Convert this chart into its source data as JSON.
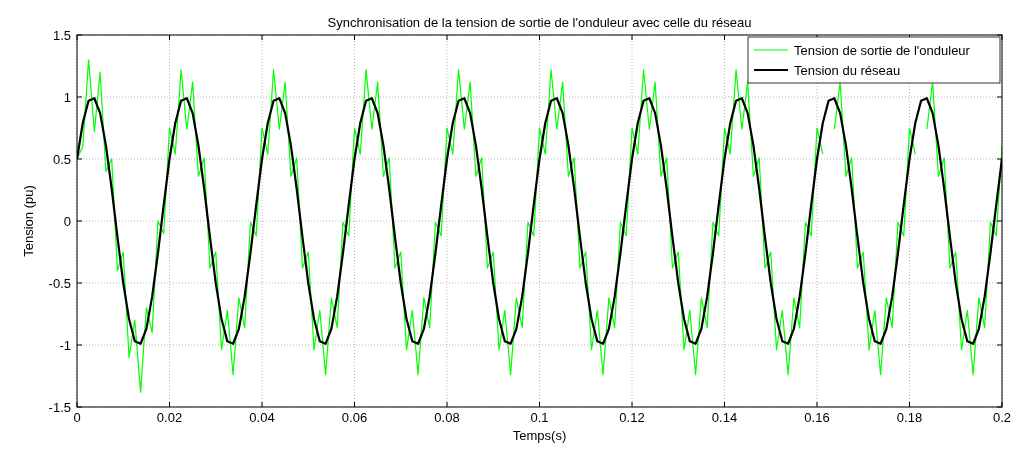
{
  "chart_data": {
    "type": "line",
    "title": "Synchronisation de la tension de sortie de l'onduleur avec celle du réseau",
    "xlabel": "Temps(s)",
    "ylabel": "Tension (pu)",
    "x": [
      0,
      0.00125,
      0.0025,
      0.00375,
      0.005,
      0.00625,
      0.0075,
      0.00875,
      0.01,
      0.01125,
      0.0125,
      0.01375,
      0.015,
      0.01625,
      0.0175,
      0.01875,
      0.02,
      0.02125,
      0.0225,
      0.02375,
      0.025,
      0.02625,
      0.0275,
      0.02875,
      0.03,
      0.03125,
      0.0325,
      0.03375,
      0.035,
      0.03625,
      0.0375,
      0.03875,
      0.04,
      0.04125,
      0.0425,
      0.04375,
      0.045,
      0.04625,
      0.0475,
      0.04875,
      0.05,
      0.05125,
      0.0525,
      0.05375,
      0.055,
      0.05625,
      0.0575,
      0.05875,
      0.06,
      0.06125,
      0.0625,
      0.06375,
      0.065,
      0.06625,
      0.0675,
      0.06875,
      0.07,
      0.07125,
      0.0725,
      0.07375,
      0.075,
      0.07625,
      0.0775,
      0.07875,
      0.08,
      0.08125,
      0.0825,
      0.08375,
      0.085,
      0.08625,
      0.0875,
      0.08875,
      0.09,
      0.09125,
      0.0925,
      0.09375,
      0.095,
      0.09625,
      0.0975,
      0.09875,
      0.1,
      0.10125,
      0.1025,
      0.10375,
      0.105,
      0.10625,
      0.1075,
      0.10875,
      0.11,
      0.11125,
      0.1125,
      0.11375,
      0.115,
      0.11625,
      0.1175,
      0.11875,
      0.12,
      0.12125,
      0.1225,
      0.12375,
      0.125,
      0.12625,
      0.1275,
      0.12875,
      0.13,
      0.13125,
      0.1325,
      0.13375,
      0.135,
      0.13625,
      0.1375,
      0.13875,
      0.14,
      0.14125,
      0.1425,
      0.14375,
      0.145,
      0.14625,
      0.1475,
      0.14875,
      0.15,
      0.15125,
      0.1525,
      0.15375,
      0.155,
      0.15625,
      0.1575,
      0.15875,
      0.16,
      0.16125,
      0.1625,
      0.16375,
      0.165,
      0.16625,
      0.1675,
      0.16875,
      0.17,
      0.17125,
      0.1725,
      0.17375,
      0.175,
      0.17625,
      0.1775,
      0.17875,
      0.18,
      0.18125,
      0.1825,
      0.18375,
      0.185,
      0.18625,
      0.1875,
      0.18875,
      0.19,
      0.19125,
      0.1925,
      0.19375,
      0.195,
      0.19625,
      0.1975,
      0.19875,
      0.2
    ],
    "series": [
      {
        "name": "Tension de sortie de l'onduleur",
        "color": "#00ff00",
        "values": [
          0.5,
          0.6,
          1.3,
          0.72,
          1.2,
          0.4,
          0.5,
          -0.4,
          -0.25,
          -1.1,
          -0.8,
          -1.38,
          -0.7,
          -0.9,
          0,
          -0.1,
          0.75,
          0.54,
          1.22,
          0.74,
          1.12,
          0.36,
          0.51,
          -0.38,
          -0.25,
          -1.04,
          -0.72,
          -1.24,
          -0.62,
          -0.86,
          -0.01,
          -0.12,
          0.75,
          0.54,
          1.22,
          0.74,
          1.12,
          0.36,
          0.51,
          -0.38,
          -0.25,
          -1.04,
          -0.72,
          -1.24,
          -0.62,
          -0.86,
          -0.01,
          -0.12,
          0.75,
          0.54,
          1.22,
          0.74,
          1.12,
          0.36,
          0.51,
          -0.38,
          -0.25,
          -1.04,
          -0.72,
          -1.24,
          -0.62,
          -0.86,
          -0.01,
          -0.12,
          0.75,
          0.54,
          1.22,
          0.74,
          1.12,
          0.36,
          0.51,
          -0.38,
          -0.25,
          -1.04,
          -0.72,
          -1.24,
          -0.62,
          -0.86,
          -0.01,
          -0.12,
          0.75,
          0.54,
          1.22,
          0.74,
          1.12,
          0.36,
          0.51,
          -0.38,
          -0.25,
          -1.04,
          -0.72,
          -1.24,
          -0.62,
          -0.86,
          -0.01,
          -0.12,
          0.75,
          0.54,
          1.22,
          0.74,
          1.12,
          0.36,
          0.51,
          -0.38,
          -0.25,
          -1.04,
          -0.72,
          -1.24,
          -0.62,
          -0.86,
          -0.01,
          -0.12,
          0.75,
          0.54,
          1.22,
          0.74,
          1.12,
          0.36,
          0.51,
          -0.38,
          -0.25,
          -1.04,
          -0.72,
          -1.24,
          -0.62,
          -0.86,
          -0.01,
          -0.12,
          0.75,
          0.54,
          null,
          0.74,
          1.12,
          0.36,
          0.51,
          -0.38,
          -0.25,
          -1.04,
          -0.72,
          -1.24,
          -0.62,
          -0.86,
          -0.01,
          -0.12,
          0.75,
          0.54,
          null,
          0.74,
          1.12,
          0.36,
          0.51,
          -0.38,
          -0.25,
          -1.04,
          -0.72,
          -1.24,
          -0.62,
          -0.86,
          -0.01,
          -0.12,
          0.6
        ]
      },
      {
        "name": "Tension du réseau",
        "color": "#000000",
        "values": [
          0.5,
          0.79,
          0.97,
          0.99,
          0.87,
          0.61,
          0.26,
          -0.13,
          -0.5,
          -0.79,
          -0.97,
          -0.99,
          -0.87,
          -0.61,
          -0.26,
          0.13,
          0.5,
          0.79,
          0.97,
          0.99,
          0.87,
          0.61,
          0.26,
          -0.13,
          -0.5,
          -0.79,
          -0.97,
          -0.99,
          -0.87,
          -0.61,
          -0.26,
          0.13,
          0.5,
          0.79,
          0.97,
          0.99,
          0.87,
          0.61,
          0.26,
          -0.13,
          -0.5,
          -0.79,
          -0.97,
          -0.99,
          -0.87,
          -0.61,
          -0.26,
          0.13,
          0.5,
          0.79,
          0.97,
          0.99,
          0.87,
          0.61,
          0.26,
          -0.13,
          -0.5,
          -0.79,
          -0.97,
          -0.99,
          -0.87,
          -0.61,
          -0.26,
          0.13,
          0.5,
          0.79,
          0.97,
          0.99,
          0.87,
          0.61,
          0.26,
          -0.13,
          -0.5,
          -0.79,
          -0.97,
          -0.99,
          -0.87,
          -0.61,
          -0.26,
          0.13,
          0.5,
          0.79,
          0.97,
          0.99,
          0.87,
          0.61,
          0.26,
          -0.13,
          -0.5,
          -0.79,
          -0.97,
          -0.99,
          -0.87,
          -0.61,
          -0.26,
          0.13,
          0.5,
          0.79,
          0.97,
          0.99,
          0.87,
          0.61,
          0.26,
          -0.13,
          -0.5,
          -0.79,
          -0.97,
          -0.99,
          -0.87,
          -0.61,
          -0.26,
          0.13,
          0.5,
          0.79,
          0.97,
          0.99,
          0.87,
          0.61,
          0.26,
          -0.13,
          -0.5,
          -0.79,
          -0.97,
          -0.99,
          -0.87,
          -0.61,
          -0.26,
          0.13,
          0.5,
          0.79,
          0.97,
          0.99,
          0.87,
          0.61,
          0.26,
          -0.13,
          -0.5,
          -0.79,
          -0.97,
          -0.99,
          -0.87,
          -0.61,
          -0.26,
          0.13,
          0.5,
          0.79,
          0.97,
          0.99,
          0.87,
          0.61,
          0.26,
          -0.13,
          -0.5,
          -0.79,
          -0.97,
          -0.99,
          -0.87,
          -0.61,
          -0.26,
          0.13,
          0.5
        ]
      }
    ],
    "xlim": [
      0,
      0.2
    ],
    "xticks": [
      0,
      0.02,
      0.04,
      0.06,
      0.08,
      0.1,
      0.12,
      0.14,
      0.16,
      0.18,
      0.2
    ],
    "ylim": [
      -1.5,
      1.5
    ],
    "yticks": [
      -1.5,
      -1,
      -0.5,
      0,
      0.5,
      1,
      1.5
    ],
    "grid": true,
    "legend": "top right"
  }
}
